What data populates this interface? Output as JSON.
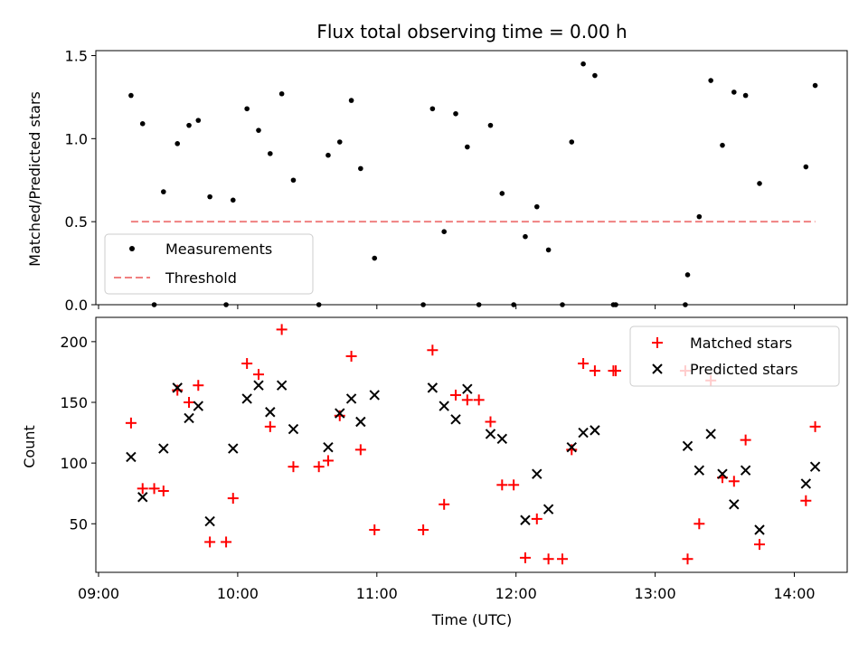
{
  "chart_data": [
    {
      "type": "scatter",
      "title": "Flux total observing time = 0.00 h",
      "ylabel": "Matched/Predicted stars",
      "ylim": [
        0,
        1.53
      ],
      "yticks": [
        0.0,
        0.5,
        1.0,
        1.5
      ],
      "ytick_labels": [
        "0.0",
        "0.5",
        "1.0",
        "1.5"
      ],
      "xlim": [
        "09:00",
        "14:24"
      ],
      "xticks": [
        "09:00",
        "10:00",
        "11:00",
        "12:00",
        "13:00",
        "14:00"
      ],
      "legend": "lower-left",
      "series": [
        {
          "name": "Measurements",
          "color": "#000000",
          "marker": "dot",
          "points": [
            [
              "09:14",
              1.26
            ],
            [
              "09:19",
              1.09
            ],
            [
              "09:24",
              0.0
            ],
            [
              "09:28",
              0.68
            ],
            [
              "09:34",
              0.97
            ],
            [
              "09:39",
              1.08
            ],
            [
              "09:43",
              1.11
            ],
            [
              "09:48",
              0.65
            ],
            [
              "09:55",
              0.0
            ],
            [
              "09:58",
              0.63
            ],
            [
              "10:04",
              1.18
            ],
            [
              "10:09",
              1.05
            ],
            [
              "10:14",
              0.91
            ],
            [
              "10:19",
              1.27
            ],
            [
              "10:24",
              0.75
            ],
            [
              "10:35",
              0.0
            ],
            [
              "10:39",
              0.9
            ],
            [
              "10:44",
              0.98
            ],
            [
              "10:49",
              1.23
            ],
            [
              "10:53",
              0.82
            ],
            [
              "10:59",
              0.28
            ],
            [
              "11:20",
              0.0
            ],
            [
              "11:24",
              1.18
            ],
            [
              "11:29",
              0.44
            ],
            [
              "11:34",
              1.15
            ],
            [
              "11:39",
              0.95
            ],
            [
              "11:44",
              0.0
            ],
            [
              "11:49",
              1.08
            ],
            [
              "11:54",
              0.67
            ],
            [
              "11:59",
              0.0
            ],
            [
              "12:04",
              0.41
            ],
            [
              "12:09",
              0.59
            ],
            [
              "12:14",
              0.33
            ],
            [
              "12:20",
              0.0
            ],
            [
              "12:24",
              0.98
            ],
            [
              "12:29",
              1.45
            ],
            [
              "12:34",
              1.38
            ],
            [
              "12:42",
              0.0
            ],
            [
              "12:43",
              0.0
            ],
            [
              "13:13",
              0.0
            ],
            [
              "13:14",
              0.18
            ],
            [
              "13:19",
              0.53
            ],
            [
              "13:24",
              1.35
            ],
            [
              "13:29",
              0.96
            ],
            [
              "13:34",
              1.28
            ],
            [
              "13:39",
              1.26
            ],
            [
              "13:45",
              0.73
            ],
            [
              "14:05",
              0.83
            ],
            [
              "14:09",
              1.32
            ]
          ]
        },
        {
          "name": "Threshold",
          "color": "#f08080",
          "style": "dashed",
          "x": [
            "09:14",
            "14:09"
          ],
          "y": [
            0.5,
            0.5
          ]
        }
      ]
    },
    {
      "type": "scatter",
      "xlabel": "Time (UTC)",
      "ylabel": "Count",
      "ylim": [
        10,
        220
      ],
      "yticks": [
        50,
        100,
        150,
        200
      ],
      "ytick_labels": [
        "50",
        "100",
        "150",
        "200"
      ],
      "xlim": [
        "09:00",
        "14:24"
      ],
      "xticks": [
        "09:00",
        "10:00",
        "11:00",
        "12:00",
        "13:00",
        "14:00"
      ],
      "xtick_labels": [
        "09:00",
        "10:00",
        "11:00",
        "12:00",
        "13:00",
        "14:00"
      ],
      "legend": "top-right",
      "series": [
        {
          "name": "Matched stars",
          "color": "#ff0000",
          "marker": "plus",
          "points": [
            [
              "09:14",
              133
            ],
            [
              "09:19",
              79
            ],
            [
              "09:24",
              79
            ],
            [
              "09:28",
              77
            ],
            [
              "09:34",
              160
            ],
            [
              "09:39",
              150
            ],
            [
              "09:43",
              164
            ],
            [
              "09:48",
              35
            ],
            [
              "09:55",
              35
            ],
            [
              "09:58",
              71
            ],
            [
              "10:04",
              182
            ],
            [
              "10:09",
              173
            ],
            [
              "10:14",
              130
            ],
            [
              "10:19",
              210
            ],
            [
              "10:24",
              97
            ],
            [
              "10:35",
              97
            ],
            [
              "10:39",
              102
            ],
            [
              "10:44",
              139
            ],
            [
              "10:49",
              188
            ],
            [
              "10:53",
              111
            ],
            [
              "10:59",
              45
            ],
            [
              "11:20",
              45
            ],
            [
              "11:24",
              193
            ],
            [
              "11:29",
              66
            ],
            [
              "11:34",
              156
            ],
            [
              "11:39",
              152
            ],
            [
              "11:44",
              152
            ],
            [
              "11:49",
              134
            ],
            [
              "11:54",
              82
            ],
            [
              "11:59",
              82
            ],
            [
              "12:04",
              22
            ],
            [
              "12:09",
              54
            ],
            [
              "12:14",
              21
            ],
            [
              "12:20",
              21
            ],
            [
              "12:24",
              111
            ],
            [
              "12:29",
              182
            ],
            [
              "12:34",
              176
            ],
            [
              "12:42",
              176
            ],
            [
              "12:43",
              176
            ],
            [
              "13:13",
              176
            ],
            [
              "13:14",
              21
            ],
            [
              "13:19",
              50
            ],
            [
              "13:24",
              168
            ],
            [
              "13:29",
              88
            ],
            [
              "13:34",
              85
            ],
            [
              "13:39",
              119
            ],
            [
              "13:45",
              33
            ],
            [
              "14:05",
              69
            ],
            [
              "14:09",
              130
            ]
          ]
        },
        {
          "name": "Predicted stars",
          "color": "#000000",
          "marker": "x",
          "points": [
            [
              "09:14",
              105
            ],
            [
              "09:19",
              72
            ],
            [
              "09:28",
              112
            ],
            [
              "09:34",
              162
            ],
            [
              "09:39",
              137
            ],
            [
              "09:43",
              147
            ],
            [
              "09:48",
              52
            ],
            [
              "09:58",
              112
            ],
            [
              "10:04",
              153
            ],
            [
              "10:09",
              164
            ],
            [
              "10:14",
              142
            ],
            [
              "10:19",
              164
            ],
            [
              "10:24",
              128
            ],
            [
              "10:39",
              113
            ],
            [
              "10:44",
              141
            ],
            [
              "10:49",
              153
            ],
            [
              "10:53",
              134
            ],
            [
              "10:59",
              156
            ],
            [
              "11:24",
              162
            ],
            [
              "11:29",
              147
            ],
            [
              "11:34",
              136
            ],
            [
              "11:39",
              161
            ],
            [
              "11:49",
              124
            ],
            [
              "11:54",
              120
            ],
            [
              "12:04",
              53
            ],
            [
              "12:09",
              91
            ],
            [
              "12:14",
              62
            ],
            [
              "12:24",
              113
            ],
            [
              "12:29",
              125
            ],
            [
              "12:34",
              127
            ],
            [
              "13:14",
              114
            ],
            [
              "13:19",
              94
            ],
            [
              "13:24",
              124
            ],
            [
              "13:29",
              91
            ],
            [
              "13:34",
              66
            ],
            [
              "13:39",
              94
            ],
            [
              "13:45",
              45
            ],
            [
              "14:05",
              83
            ],
            [
              "14:09",
              97
            ]
          ]
        }
      ]
    }
  ]
}
